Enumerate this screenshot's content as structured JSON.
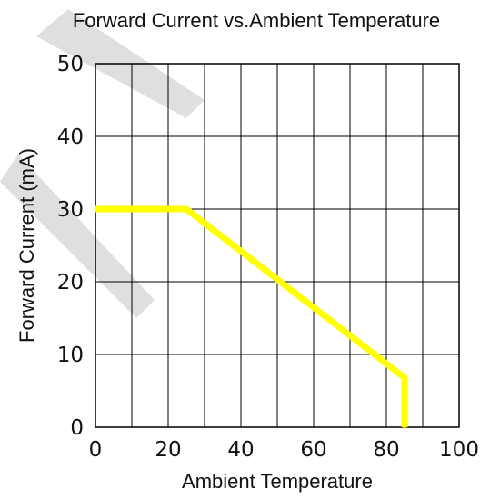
{
  "chart_data": {
    "type": "line",
    "title": "Forward Current vs.Ambient Temperature",
    "xlabel": "Ambient Temperature",
    "ylabel": "Forward Current (mA)",
    "xlim": [
      0,
      100
    ],
    "ylim": [
      0,
      50
    ],
    "x_ticks": [
      "0",
      "20",
      "40",
      "60",
      "80",
      "100"
    ],
    "y_ticks": [
      "0",
      "10",
      "20",
      "30",
      "40",
      "50"
    ],
    "grid": true,
    "x_grid_step": 10,
    "y_grid_step": 10,
    "series": [
      {
        "color": "#ffff00",
        "points": [
          [
            0,
            30
          ],
          [
            25,
            30
          ],
          [
            85,
            6.8
          ],
          [
            85,
            0
          ]
        ]
      }
    ]
  }
}
